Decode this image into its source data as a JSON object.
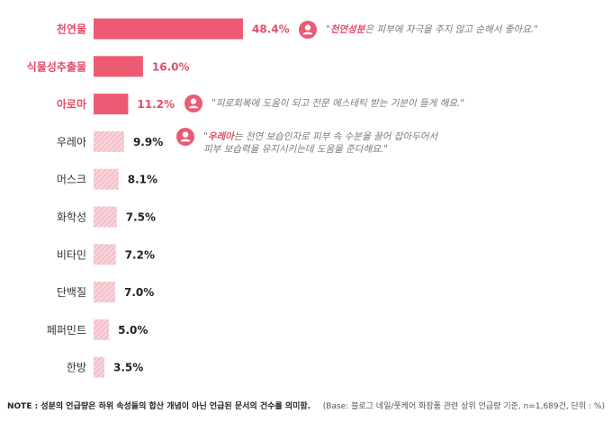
{
  "chart_data": {
    "type": "bar",
    "orientation": "horizontal",
    "categories": [
      "천연물",
      "식물성추출물",
      "아로마",
      "우레아",
      "머스크",
      "화학성",
      "비타민",
      "단백질",
      "페퍼민트",
      "한방"
    ],
    "values": [
      48.4,
      16.0,
      11.2,
      9.9,
      8.1,
      7.5,
      7.2,
      7.0,
      5.0,
      3.5
    ],
    "value_labels": [
      "48.4%",
      "16.0%",
      "11.2%",
      "9.9%",
      "8.1%",
      "7.5%",
      "7.2%",
      "7.0%",
      "5.0%",
      "3.5%"
    ],
    "highlighted_count": 3,
    "title": "",
    "xlabel": "",
    "ylabel": "",
    "grid": false,
    "legend": "none"
  },
  "quotes": [
    {
      "highlight": "천연성분",
      "lines": [
        "은 피부에 자극을 주지 않고 순해서 좋아요.\""
      ]
    },
    {
      "highlight": "",
      "lines": [
        "\"피로회복에 도움이 되고 전문 에스테틱 받는 기분이 들게 해요.\""
      ]
    },
    {
      "highlight": "우레아",
      "lines": [
        "는 천연 보습인자로 피부 속 수분을 끌어 잡아두어서",
        "피부 보습력을 유지시키는데 도움을 준다해요.\""
      ]
    }
  ],
  "footer": {
    "note": "NOTE : 성분의 언급량은 하위 속성들의 합산 개념이 아닌 언급된 문서의 건수를 의미함.",
    "base": "(Base: 블로그 네일/풋케어 화장품 관련 상위 언급량 기준, n=1,689건, 단위 : %)"
  },
  "colors": {
    "highlight_bar": "#ee5a72",
    "highlight_label": "#e44d67",
    "pattern_fill": "#f7c6cf",
    "pattern_line": "#e58ca0",
    "label": "#333333",
    "icon": "#e85b72"
  },
  "icons": {
    "quote_avatar": "person-icon"
  }
}
